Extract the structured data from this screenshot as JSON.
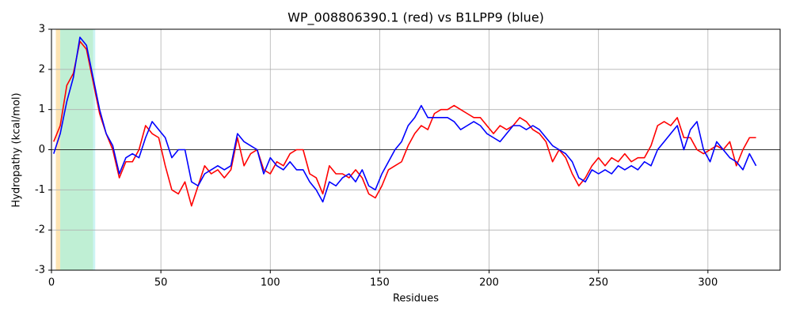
{
  "chart_data": {
    "type": "line",
    "title": "WP_008806390.1 (red) vs B1LPP9 (blue)",
    "x_label": "Residues",
    "y_label": "Hydropathy (kcal/mol)",
    "xlim": [
      0,
      333
    ],
    "ylim": [
      -3,
      3
    ],
    "xticks": [
      0,
      50,
      100,
      150,
      200,
      250,
      300
    ],
    "yticks": [
      -3,
      -2,
      -1,
      0,
      1,
      2,
      3
    ],
    "grid": true,
    "hline": 0,
    "spans": [
      {
        "start": 2,
        "end": 4,
        "color": "#fde3b3"
      },
      {
        "start": 4,
        "end": 19,
        "color": "#bfefd4"
      },
      {
        "start": 19,
        "end": 20,
        "color": "#cdf4f4"
      }
    ],
    "x": [
      1,
      4,
      7,
      10,
      13,
      16,
      19,
      22,
      25,
      28,
      31,
      34,
      37,
      40,
      43,
      46,
      49,
      52,
      55,
      58,
      61,
      64,
      67,
      70,
      73,
      76,
      79,
      82,
      85,
      88,
      91,
      94,
      97,
      100,
      103,
      106,
      109,
      112,
      115,
      118,
      121,
      124,
      127,
      130,
      133,
      136,
      139,
      142,
      145,
      148,
      151,
      154,
      157,
      160,
      163,
      166,
      169,
      172,
      175,
      178,
      181,
      184,
      187,
      190,
      193,
      196,
      199,
      202,
      205,
      208,
      211,
      214,
      217,
      220,
      223,
      226,
      229,
      232,
      235,
      238,
      241,
      244,
      247,
      250,
      253,
      256,
      259,
      262,
      265,
      268,
      271,
      274,
      277,
      280,
      283,
      286,
      289,
      292,
      295,
      298,
      301,
      304,
      307,
      310,
      313,
      316,
      319,
      322
    ],
    "series": [
      {
        "name": "WP_008806390.1",
        "color": "#ff0000",
        "values": [
          0.2,
          0.6,
          1.6,
          1.9,
          2.7,
          2.5,
          1.7,
          0.9,
          0.4,
          0.0,
          -0.7,
          -0.3,
          -0.3,
          0.0,
          0.6,
          0.4,
          0.3,
          -0.4,
          -1.0,
          -1.1,
          -0.8,
          -1.4,
          -0.9,
          -0.4,
          -0.6,
          -0.5,
          -0.7,
          -0.5,
          0.3,
          -0.4,
          -0.1,
          0.0,
          -0.5,
          -0.6,
          -0.3,
          -0.4,
          -0.1,
          0.0,
          0.0,
          -0.6,
          -0.7,
          -1.1,
          -0.4,
          -0.6,
          -0.6,
          -0.7,
          -0.5,
          -0.7,
          -1.1,
          -1.2,
          -0.9,
          -0.5,
          -0.4,
          -0.3,
          0.1,
          0.4,
          0.6,
          0.5,
          0.9,
          1.0,
          1.0,
          1.1,
          1.0,
          0.9,
          0.8,
          0.8,
          0.6,
          0.4,
          0.6,
          0.5,
          0.6,
          0.8,
          0.7,
          0.5,
          0.4,
          0.2,
          -0.3,
          0.0,
          -0.2,
          -0.6,
          -0.9,
          -0.7,
          -0.4,
          -0.2,
          -0.4,
          -0.2,
          -0.3,
          -0.1,
          -0.3,
          -0.2,
          -0.2,
          0.1,
          0.6,
          0.7,
          0.6,
          0.8,
          0.3,
          0.3,
          0.0,
          -0.1,
          0.0,
          0.1,
          0.0,
          0.2,
          -0.4,
          0.0,
          0.3,
          0.3
        ]
      },
      {
        "name": "B1LPP9",
        "color": "#0000ff",
        "values": [
          -0.1,
          0.4,
          1.2,
          1.8,
          2.8,
          2.6,
          1.8,
          1.0,
          0.4,
          0.1,
          -0.6,
          -0.2,
          -0.1,
          -0.2,
          0.3,
          0.7,
          0.5,
          0.3,
          -0.2,
          0.0,
          0.0,
          -0.8,
          -0.9,
          -0.6,
          -0.5,
          -0.4,
          -0.5,
          -0.4,
          0.4,
          0.2,
          0.1,
          0.0,
          -0.6,
          -0.2,
          -0.4,
          -0.5,
          -0.3,
          -0.5,
          -0.5,
          -0.8,
          -1.0,
          -1.3,
          -0.8,
          -0.9,
          -0.7,
          -0.6,
          -0.8,
          -0.5,
          -0.9,
          -1.0,
          -0.6,
          -0.3,
          0.0,
          0.2,
          0.6,
          0.8,
          1.1,
          0.8,
          0.8,
          0.8,
          0.8,
          0.7,
          0.5,
          0.6,
          0.7,
          0.6,
          0.4,
          0.3,
          0.2,
          0.4,
          0.6,
          0.6,
          0.5,
          0.6,
          0.5,
          0.3,
          0.1,
          0.0,
          -0.1,
          -0.3,
          -0.7,
          -0.8,
          -0.5,
          -0.6,
          -0.5,
          -0.6,
          -0.4,
          -0.5,
          -0.4,
          -0.5,
          -0.3,
          -0.4,
          0.0,
          0.2,
          0.4,
          0.6,
          0.0,
          0.5,
          0.7,
          0.0,
          -0.3,
          0.2,
          0.0,
          -0.2,
          -0.3,
          -0.5,
          -0.1,
          -0.4
        ]
      }
    ]
  }
}
